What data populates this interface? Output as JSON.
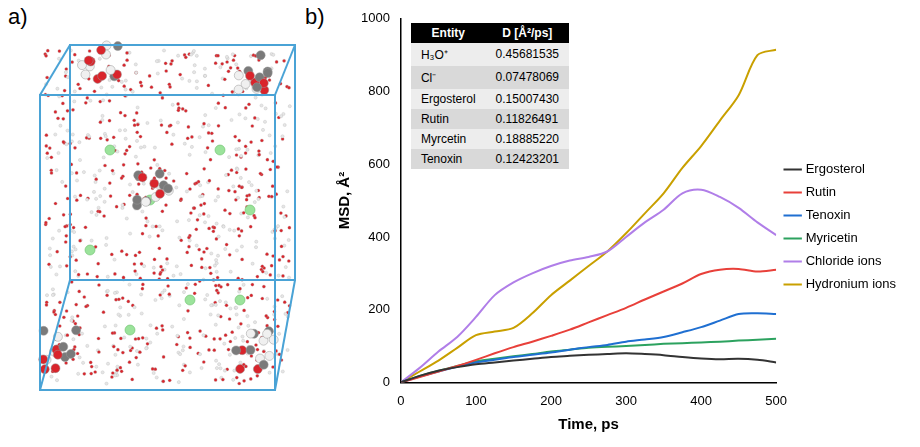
{
  "panel_labels": [
    "a)",
    "b)"
  ],
  "chart_data": {
    "type": "line",
    "x_label": "Time, ps",
    "y_label": "MSD, Å²",
    "x": [
      0,
      25,
      50,
      75,
      100,
      125,
      150,
      175,
      200,
      225,
      250,
      275,
      300,
      325,
      350,
      375,
      400,
      425,
      450,
      475,
      500
    ],
    "series": [
      {
        "name": "Ergosterol",
        "color": "#333333",
        "values": [
          0,
          18,
          32,
          42,
          50,
          55,
          60,
          65,
          70,
          73,
          76,
          78,
          80,
          78,
          75,
          70,
          66,
          64,
          65,
          62,
          55
        ]
      },
      {
        "name": "Rutin",
        "color": "#e8403a",
        "values": [
          0,
          15,
          30,
          45,
          62,
          80,
          97,
          112,
          128,
          145,
          165,
          185,
          205,
          228,
          250,
          272,
          298,
          310,
          312,
          305,
          310
        ]
      },
      {
        "name": "Tenoxin",
        "color": "#1f6fd1",
        "values": [
          0,
          16,
          30,
          43,
          55,
          62,
          70,
          76,
          82,
          90,
          97,
          103,
          112,
          118,
          125,
          138,
          152,
          170,
          188,
          190,
          188
        ]
      },
      {
        "name": "Myricetin",
        "color": "#2ca25f",
        "values": [
          0,
          18,
          32,
          45,
          58,
          65,
          72,
          78,
          85,
          90,
          95,
          98,
          100,
          103,
          106,
          108,
          110,
          112,
          115,
          117,
          120
        ]
      },
      {
        "name": "Chloride ions",
        "color": "#b07ee8",
        "values": [
          0,
          40,
          85,
          125,
          180,
          240,
          275,
          300,
          320,
          335,
          345,
          360,
          400,
          440,
          475,
          520,
          530,
          510,
          480,
          440,
          405
        ]
      },
      {
        "name": "Hydronium ions",
        "color": "#c9a000",
        "values": [
          0,
          30,
          60,
          95,
          130,
          140,
          150,
          190,
          240,
          280,
          320,
          360,
          410,
          465,
          520,
          590,
          650,
          720,
          790,
          900,
          915
        ]
      }
    ],
    "xlim": [
      0,
      500
    ],
    "xticks": [
      0,
      100,
      200,
      300,
      400,
      500
    ],
    "ylim": [
      0,
      1000
    ],
    "yticks": [
      0,
      200,
      400,
      600,
      800,
      1000
    ],
    "grid": false,
    "legend": "right",
    "table": {
      "header": [
        "Entity",
        "D [Å²/ps]"
      ],
      "rows": [
        [
          "H₃O⁺",
          "0.45681535"
        ],
        [
          "Cl⁻",
          "0.07478069"
        ],
        [
          "Ergosterol",
          "0.15007430"
        ],
        [
          "Rutin",
          "0.11826491"
        ],
        [
          "Myrcetin",
          "0.18885220"
        ],
        [
          "Tenoxin",
          "0.12423201"
        ]
      ]
    }
  }
}
